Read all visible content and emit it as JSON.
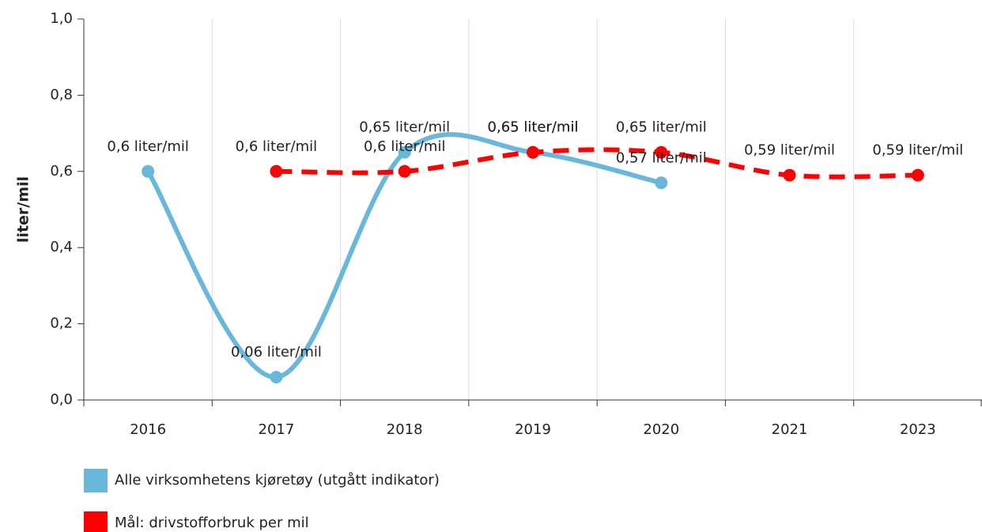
{
  "chart_data": {
    "type": "line",
    "ylabel": "liter/mil",
    "categories": [
      "2016",
      "2017",
      "2018",
      "2019",
      "2020",
      "2021",
      "2023"
    ],
    "series": [
      {
        "name": "Alle virksomhetens kjøretøy (utgått indikator)",
        "color": "#6ab7dc",
        "values": [
          0.6,
          0.06,
          0.65,
          0.65,
          0.57,
          null,
          null
        ],
        "value_labels": [
          "0,6 liter/mil",
          "0,06 liter/mil",
          "0,65 liter/mil",
          "0,65 liter/mil",
          "0,57 liter/mil",
          null,
          null
        ]
      },
      {
        "name": "Mål: drivstofforbruk per mil",
        "color": "#ff0000",
        "dashed": true,
        "values": [
          null,
          0.6,
          0.6,
          0.65,
          0.65,
          0.59,
          0.59
        ],
        "value_labels": [
          null,
          "0,6 liter/mil",
          "0,6 liter/mil",
          "0,65 liter/mil",
          "0,65 liter/mil",
          "0,59 liter/mil",
          "0,59 liter/mil"
        ]
      }
    ],
    "ylim": [
      0,
      1
    ],
    "yticks": [
      {
        "value": 0,
        "label": "0,0"
      },
      {
        "value": 0.2,
        "label": "0,2"
      },
      {
        "value": 0.4,
        "label": "0,4"
      },
      {
        "value": 0.6,
        "label": "0,6"
      },
      {
        "value": 0.8,
        "label": "0,8"
      },
      {
        "value": 1,
        "label": "1,0"
      }
    ],
    "grid": true
  }
}
